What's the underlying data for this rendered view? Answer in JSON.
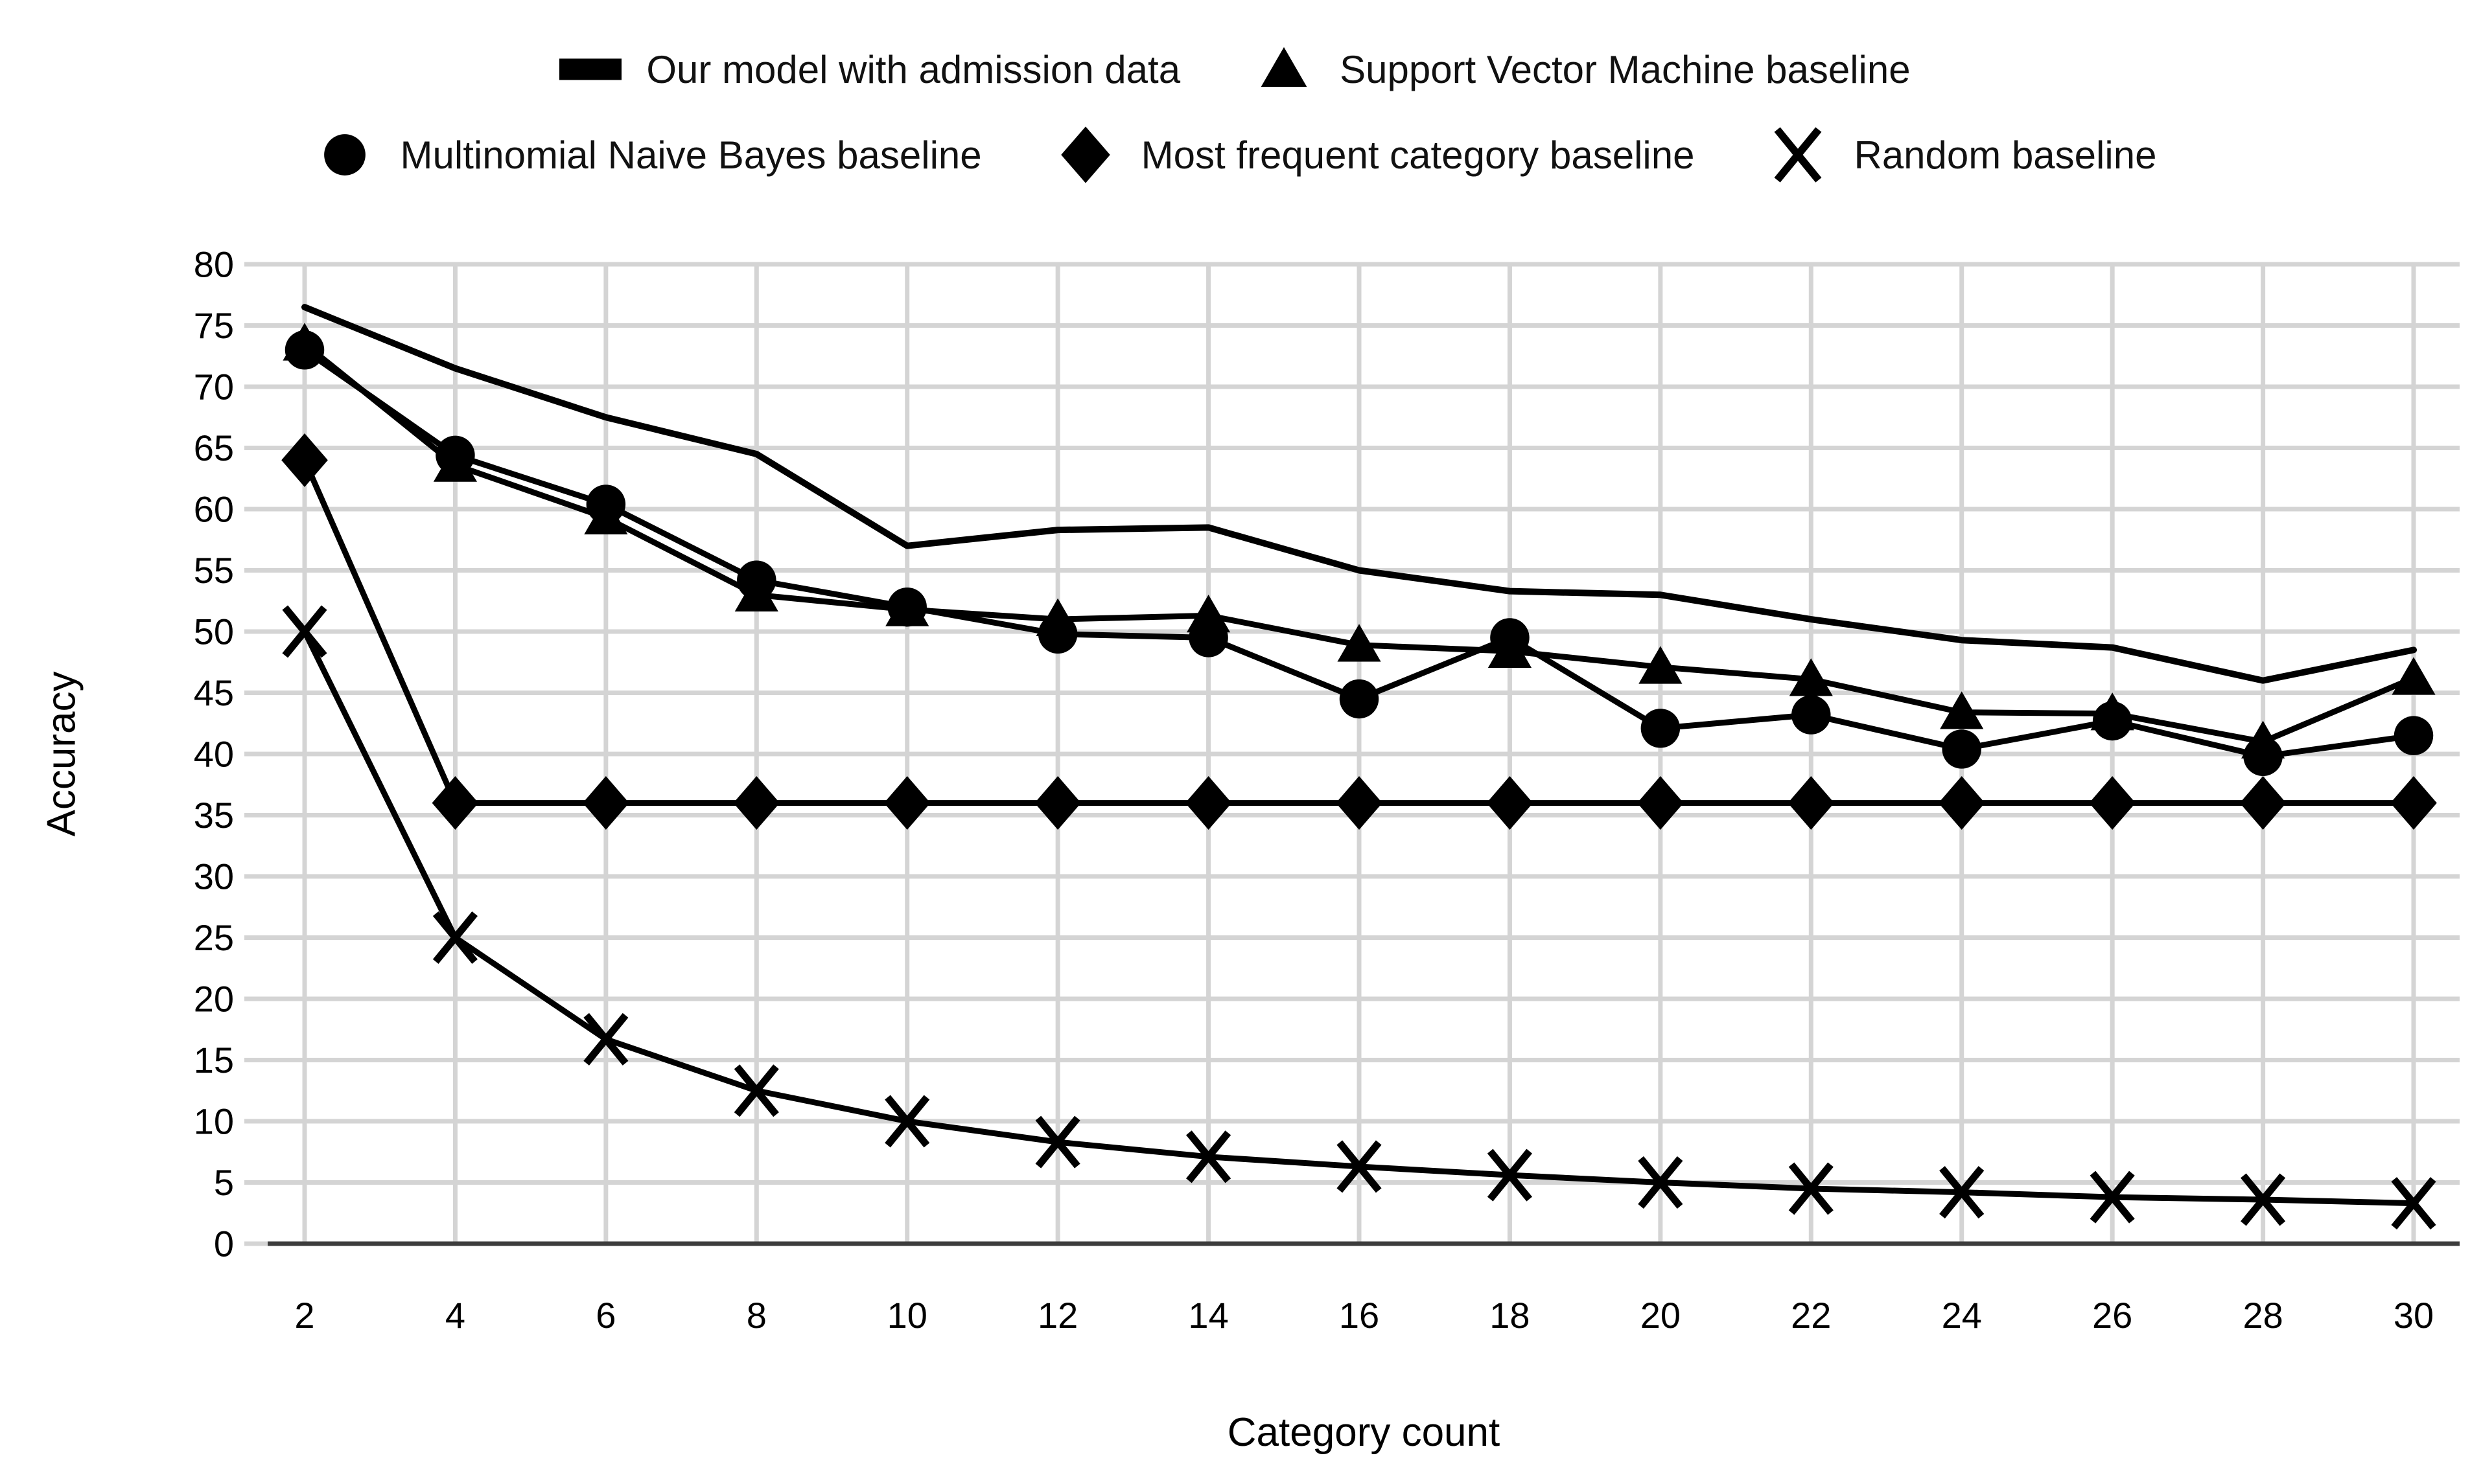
{
  "figure": {
    "title": "",
    "description": "Line chart comparing model accuracy against baselines as category count increases"
  },
  "colors": {
    "series": "#000000",
    "grid": "#d4d4d4",
    "axis": "#3c3c3c",
    "text": "#000000",
    "background": "#ffffff"
  },
  "legend": {
    "rows": [
      [
        {
          "marker": "dash",
          "label": "Our model with admission data"
        },
        {
          "marker": "triangle",
          "label": "Support Vector Machine baseline"
        }
      ],
      [
        {
          "marker": "circle",
          "label": "Multinomial Naive Bayes baseline"
        },
        {
          "marker": "diamond",
          "label": "Most frequent category baseline"
        },
        {
          "marker": "x",
          "label": "Random baseline"
        }
      ]
    ]
  },
  "axes": {
    "x_label": "Category count",
    "y_label": "Accuracy",
    "x_ticks": [
      2,
      4,
      6,
      8,
      10,
      12,
      14,
      16,
      18,
      20,
      22,
      24,
      26,
      28,
      30
    ],
    "y_ticks": [
      0,
      5,
      10,
      15,
      20,
      25,
      30,
      35,
      40,
      45,
      50,
      55,
      60,
      65,
      70,
      75,
      80
    ]
  },
  "chart_data": {
    "type": "line",
    "title": "",
    "xlabel": "Category count",
    "ylabel": "Accuracy",
    "x": [
      2,
      4,
      6,
      8,
      10,
      12,
      14,
      16,
      18,
      20,
      22,
      24,
      26,
      28,
      30
    ],
    "xlim": [
      2,
      30
    ],
    "ylim": [
      0,
      80
    ],
    "grid": "both",
    "legend_position": "top",
    "series": [
      {
        "name": "Our model with admission data",
        "marker": "dash",
        "plot_marker": "none",
        "values": [
          76.5,
          71.5,
          67.5,
          64.5,
          57.0,
          58.3,
          58.5,
          55.0,
          53.3,
          53.0,
          51.0,
          49.3,
          48.7,
          46.0,
          48.5
        ]
      },
      {
        "name": "Support Vector Machine baseline",
        "marker": "triangle",
        "plot_marker": "triangle",
        "values": [
          73.5,
          63.6,
          59.3,
          53.0,
          51.8,
          51.0,
          51.3,
          48.9,
          48.4,
          47.1,
          46.1,
          43.4,
          43.3,
          41.0,
          46.2
        ]
      },
      {
        "name": "Multinomial Naive Bayes baseline",
        "marker": "circle",
        "plot_marker": "circle",
        "values": [
          73.0,
          64.4,
          60.4,
          54.2,
          52.0,
          49.8,
          49.5,
          44.5,
          49.5,
          42.1,
          43.2,
          40.4,
          42.7,
          39.8,
          41.5
        ]
      },
      {
        "name": "Most frequent category baseline",
        "marker": "diamond",
        "plot_marker": "diamond",
        "values": [
          64.0,
          36.0,
          36.0,
          36.0,
          36.0,
          36.0,
          36.0,
          36.0,
          36.0,
          36.0,
          36.0,
          36.0,
          36.0,
          36.0,
          36.0
        ]
      },
      {
        "name": "Random baseline",
        "marker": "x",
        "plot_marker": "x",
        "values": [
          50.0,
          25.0,
          16.7,
          12.5,
          10.0,
          8.3,
          7.1,
          6.3,
          5.6,
          5.0,
          4.5,
          4.2,
          3.8,
          3.6,
          3.3
        ]
      }
    ]
  }
}
